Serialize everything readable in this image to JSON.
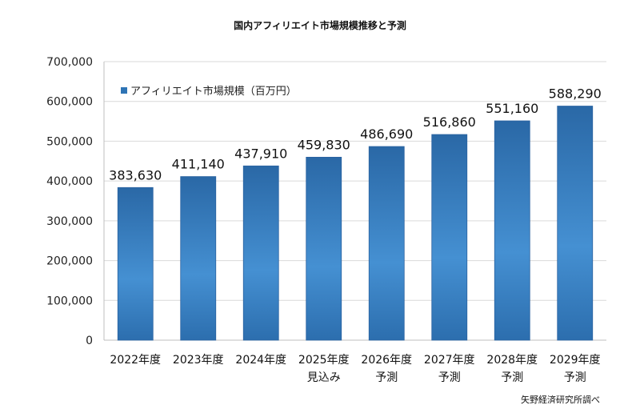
{
  "chart_data": {
    "type": "bar",
    "title": "国内アフィリエイト市場規模推移と予測",
    "categories": [
      [
        "2022年度",
        ""
      ],
      [
        "2023年度",
        ""
      ],
      [
        "2024年度",
        ""
      ],
      [
        "2025年度",
        "見込み"
      ],
      [
        "2026年度",
        "予測"
      ],
      [
        "2027年度",
        "予測"
      ],
      [
        "2028年度",
        "予測"
      ],
      [
        "2029年度",
        "予測"
      ]
    ],
    "series": [
      {
        "name": "アフィリエイト市場規模（百万円）",
        "values": [
          383630,
          411140,
          437910,
          459830,
          486690,
          516860,
          551160,
          588290
        ]
      }
    ],
    "data_labels": [
      "383,630",
      "411,140",
      "437,910",
      "459,830",
      "486,690",
      "516,860",
      "551,160",
      "588,290"
    ],
    "yticks": [
      "0",
      "100,000",
      "200,000",
      "300,000",
      "400,000",
      "500,000",
      "600,000",
      "700,000"
    ],
    "ylim": [
      0,
      700000
    ],
    "grid": true,
    "legend": "top-left",
    "source": "矢野経済研究所調べ",
    "colors": {
      "bar_dark": "#2a6aa8",
      "bar_light": "#4a90d0",
      "grid": "#d9d9d9"
    }
  }
}
